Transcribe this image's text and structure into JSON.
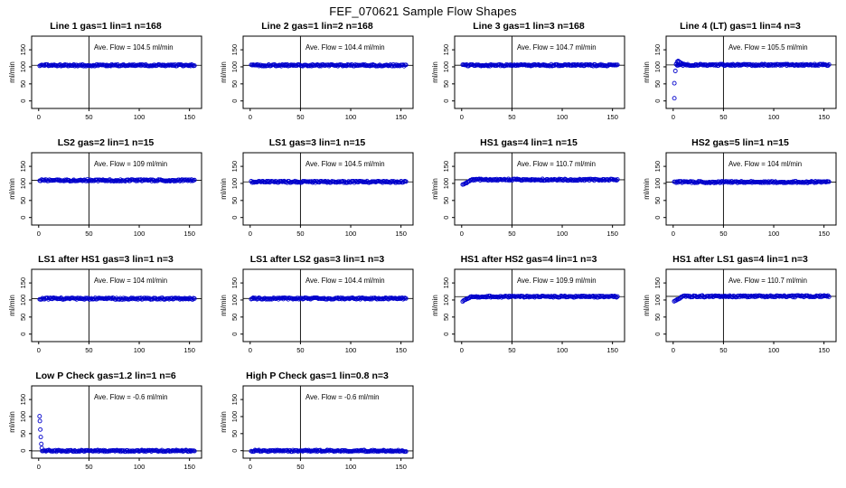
{
  "figure_title": "FEF_070621  Sample Flow Shapes",
  "style": {
    "point_color": "#0000cc",
    "axis_color": "#000000",
    "background": "#ffffff"
  },
  "axes": {
    "ylabel": "ml/min",
    "x_ticks": [
      0,
      50,
      100,
      150
    ],
    "y_ticks": [
      0,
      50,
      100,
      150
    ],
    "xlim": [
      -7,
      162
    ],
    "ylim": [
      -22,
      190
    ],
    "vline_x": 50,
    "grid": false
  },
  "chart_data": [
    {
      "type": "scatter",
      "title": "Line 1 gas=1 lin=1 n=168",
      "annotation": "Ave. Flow =  104.5  ml/min",
      "ave_flow": 104.5,
      "n": 168,
      "x_start": 1,
      "x_end": 155,
      "flow_profile": "constant"
    },
    {
      "type": "scatter",
      "title": "Line 2 gas=1 lin=2 n=168",
      "annotation": "Ave. Flow =  104.4  ml/min",
      "ave_flow": 104.4,
      "n": 168,
      "x_start": 1,
      "x_end": 155,
      "flow_profile": "constant"
    },
    {
      "type": "scatter",
      "title": "Line 3 gas=1 lin=3 n=168",
      "annotation": "Ave. Flow =  104.7  ml/min",
      "ave_flow": 104.7,
      "n": 168,
      "x_start": 1,
      "x_end": 155,
      "flow_profile": "constant"
    },
    {
      "type": "scatter",
      "title": "Line 4 (LT) gas=1 lin=4 n=3",
      "annotation": "Ave. Flow =  105.5  ml/min",
      "ave_flow": 105.5,
      "n": 3,
      "x_start": 3,
      "x_end": 155,
      "flow_profile": "startup-transient",
      "transient": [
        [
          1.2,
          8
        ],
        [
          1.2,
          52
        ],
        [
          2.2,
          88
        ],
        [
          3,
          108
        ],
        [
          4,
          115
        ],
        [
          5,
          117
        ],
        [
          6,
          115
        ],
        [
          7.5,
          112
        ],
        [
          9,
          110
        ],
        [
          11,
          108
        ],
        [
          13,
          106
        ]
      ]
    },
    {
      "type": "scatter",
      "title": "LS2 gas=2 lin=1 n=15",
      "annotation": "Ave. Flow =  109  ml/min",
      "ave_flow": 109,
      "n": 15,
      "x_start": 1,
      "x_end": 155,
      "flow_profile": "constant"
    },
    {
      "type": "scatter",
      "title": "LS1 gas=3 lin=1 n=15",
      "annotation": "Ave. Flow =  104.5  ml/min",
      "ave_flow": 104.5,
      "n": 15,
      "x_start": 1,
      "x_end": 155,
      "flow_profile": "constant"
    },
    {
      "type": "scatter",
      "title": "HS1 gas=4 lin=1 n=15",
      "annotation": "Ave. Flow =  110.7  ml/min",
      "ave_flow": 110.7,
      "n": 15,
      "x_start": 1,
      "x_end": 155,
      "flow_profile": "ramp-up",
      "ramp_start": 96
    },
    {
      "type": "scatter",
      "title": "HS2 gas=5 lin=1 n=15",
      "annotation": "Ave. Flow =  104  ml/min",
      "ave_flow": 104,
      "n": 15,
      "x_start": 1,
      "x_end": 155,
      "flow_profile": "constant"
    },
    {
      "type": "scatter",
      "title": "LS1 after HS1 gas=3 lin=1 n=3",
      "annotation": "Ave. Flow =  104  ml/min",
      "ave_flow": 104,
      "n": 3,
      "x_start": 1,
      "x_end": 155,
      "flow_profile": "constant"
    },
    {
      "type": "scatter",
      "title": "LS1 after LS2 gas=3 lin=1 n=3",
      "annotation": "Ave. Flow =  104.4  ml/min",
      "ave_flow": 104.4,
      "n": 3,
      "x_start": 1,
      "x_end": 155,
      "flow_profile": "constant"
    },
    {
      "type": "scatter",
      "title": "HS1 after HS2 gas=4 lin=1 n=3",
      "annotation": "Ave. Flow =  109.9  ml/min",
      "ave_flow": 109.9,
      "n": 3,
      "x_start": 1,
      "x_end": 155,
      "flow_profile": "ramp-up",
      "ramp_start": 97
    },
    {
      "type": "scatter",
      "title": "HS1 after LS1 gas=4 lin=1 n=3",
      "annotation": "Ave. Flow =  110.7  ml/min",
      "ave_flow": 110.7,
      "n": 3,
      "x_start": 1,
      "x_end": 155,
      "flow_profile": "ramp-up",
      "ramp_start": 96
    },
    {
      "type": "scatter",
      "title": "Low P Check gas=1.2 lin=1 n=6",
      "annotation": "Ave. Flow =  -0.6  ml/min",
      "ave_flow": -0.6,
      "n": 6,
      "x_start": 3.5,
      "x_end": 155,
      "flow_profile": "decay-to-zero",
      "transient": [
        [
          0.9,
          101
        ],
        [
          1.2,
          87
        ],
        [
          1.6,
          62
        ],
        [
          2.1,
          40
        ],
        [
          2.6,
          20
        ],
        [
          3.1,
          8
        ]
      ]
    },
    {
      "type": "scatter",
      "title": "High P Check gas=1 lin=0.8 n=3",
      "annotation": "Ave. Flow =  -0.6  ml/min",
      "ave_flow": -0.6,
      "n": 3,
      "x_start": 1,
      "x_end": 155,
      "flow_profile": "constant"
    }
  ]
}
